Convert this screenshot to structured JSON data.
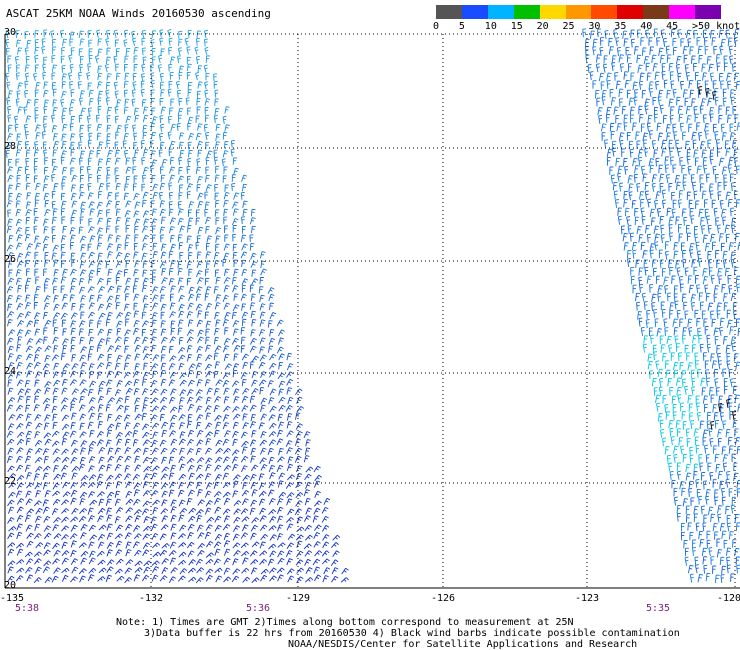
{
  "title": "ASCAT 25KM NOAA Winds 20160530 ascending",
  "colorbar": {
    "segments": [
      {
        "color": "#555555"
      },
      {
        "color": "#1a4cff"
      },
      {
        "color": "#00b4ff"
      },
      {
        "color": "#00c000"
      },
      {
        "color": "#ffd800"
      },
      {
        "color": "#ff9800"
      },
      {
        "color": "#ff4a00"
      },
      {
        "color": "#e00000"
      },
      {
        "color": "#7a3a1a"
      },
      {
        "color": "#ff00ff"
      },
      {
        "color": "#7a00b0"
      }
    ],
    "labels": [
      "0",
      "5",
      "10",
      "15",
      "20",
      "25",
      "30",
      "35",
      "40",
      "45",
      ">50 knots"
    ]
  },
  "axes": {
    "lat_labels": [
      "30",
      "28",
      "26",
      "24",
      "22",
      "20"
    ],
    "lon_labels": [
      "-135",
      "-132",
      "-129",
      "-126",
      "-123",
      "-120"
    ],
    "lat_range": [
      20,
      30
    ],
    "lon_range": [
      -135,
      -120
    ]
  },
  "time_labels": [
    "5:38",
    "5:36",
    "5:35"
  ],
  "notes": [
    "Note: 1) Times are GMT 2)Times along bottom correspond to measurement at 25N",
    "3)Data buffer is 22 hrs from 20160530 4) Black wind barbs indicate possible contamination",
    "NOAA/NESDIS/Center for Satellite Applications and Research"
  ],
  "colors": {
    "swath_west_north": "#1fa3e6",
    "swath_west_south": "#1030c8",
    "swath_east": "#1060e0",
    "swath_east_south": "#00c8e0",
    "contamination": "#000000"
  }
}
